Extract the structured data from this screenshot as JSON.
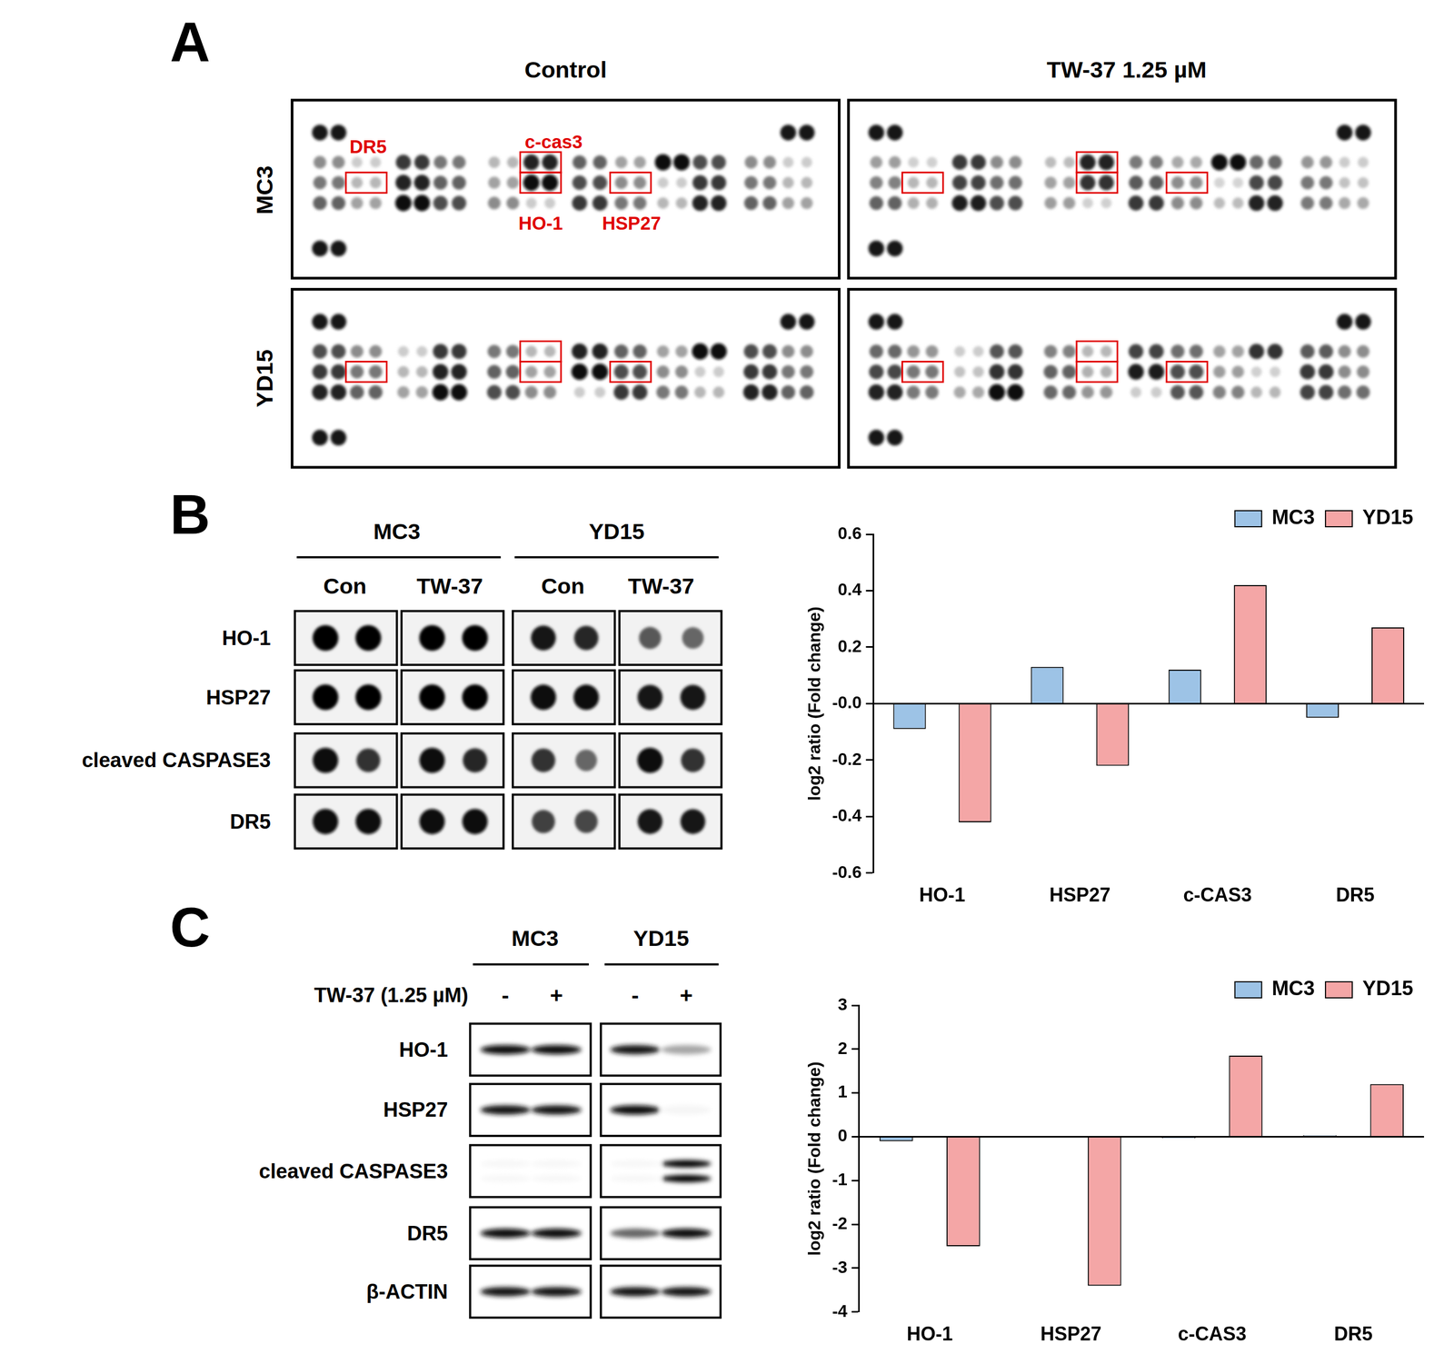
{
  "figure": {
    "panel_A": {
      "label": "A",
      "columns": [
        "Control",
        "TW-37 1.25 µM"
      ],
      "rows": [
        "MC3",
        "YD15"
      ],
      "markers": [
        "DR5",
        "c-cas3",
        "HO-1",
        "HSP27"
      ]
    },
    "panel_B": {
      "label": "B",
      "groups": [
        "MC3",
        "YD15"
      ],
      "conditions": [
        "Con",
        "TW-37"
      ],
      "rows": [
        "HO-1",
        "HSP27",
        "cleaved CASPASE3",
        "DR5"
      ]
    },
    "panel_C": {
      "label": "C",
      "groups": [
        "MC3",
        "YD15"
      ],
      "treatment": "TW-37 (1.25 µM)",
      "conditions": [
        "-",
        "+"
      ],
      "rows": [
        "HO-1",
        "HSP27",
        "cleaved CASPASE3",
        "DR5",
        "β-ACTIN"
      ]
    }
  },
  "chart_data": [
    {
      "type": "bar",
      "y_label": "log2 ratio (Fold change)",
      "categories": [
        "HO-1",
        "HSP27",
        "c-CAS3",
        "DR5"
      ],
      "series": [
        {
          "name": "MC3",
          "color": "#9dc3e6",
          "values": [
            -0.09,
            0.13,
            0.12,
            -0.05
          ]
        },
        {
          "name": "YD15",
          "color": "#f4a6a6",
          "values": [
            -0.42,
            -0.22,
            0.42,
            0.27
          ]
        }
      ],
      "ylim": [
        -0.6,
        0.6
      ],
      "yticks": [
        -0.6,
        -0.4,
        -0.2,
        {
          "value": 0,
          "label": "-0.0"
        },
        0.2,
        0.4,
        0.6
      ],
      "grid": false,
      "legend": "upper right"
    },
    {
      "type": "bar",
      "y_label": "log2 ratio (Fold change)",
      "categories": [
        "HO-1",
        "HSP27",
        "c-CAS3",
        "DR5"
      ],
      "series": [
        {
          "name": "MC3",
          "color": "#9dc3e6",
          "values": [
            -0.1,
            0.0,
            -0.03,
            0.03
          ]
        },
        {
          "name": "YD15",
          "color": "#f4a6a6",
          "values": [
            -2.5,
            -3.4,
            1.85,
            1.2
          ]
        }
      ],
      "ylim": [
        -4,
        3
      ],
      "yticks": [
        -4,
        -3,
        -2,
        -1,
        0,
        1,
        2,
        3
      ],
      "grid": false,
      "legend": "upper right"
    }
  ]
}
